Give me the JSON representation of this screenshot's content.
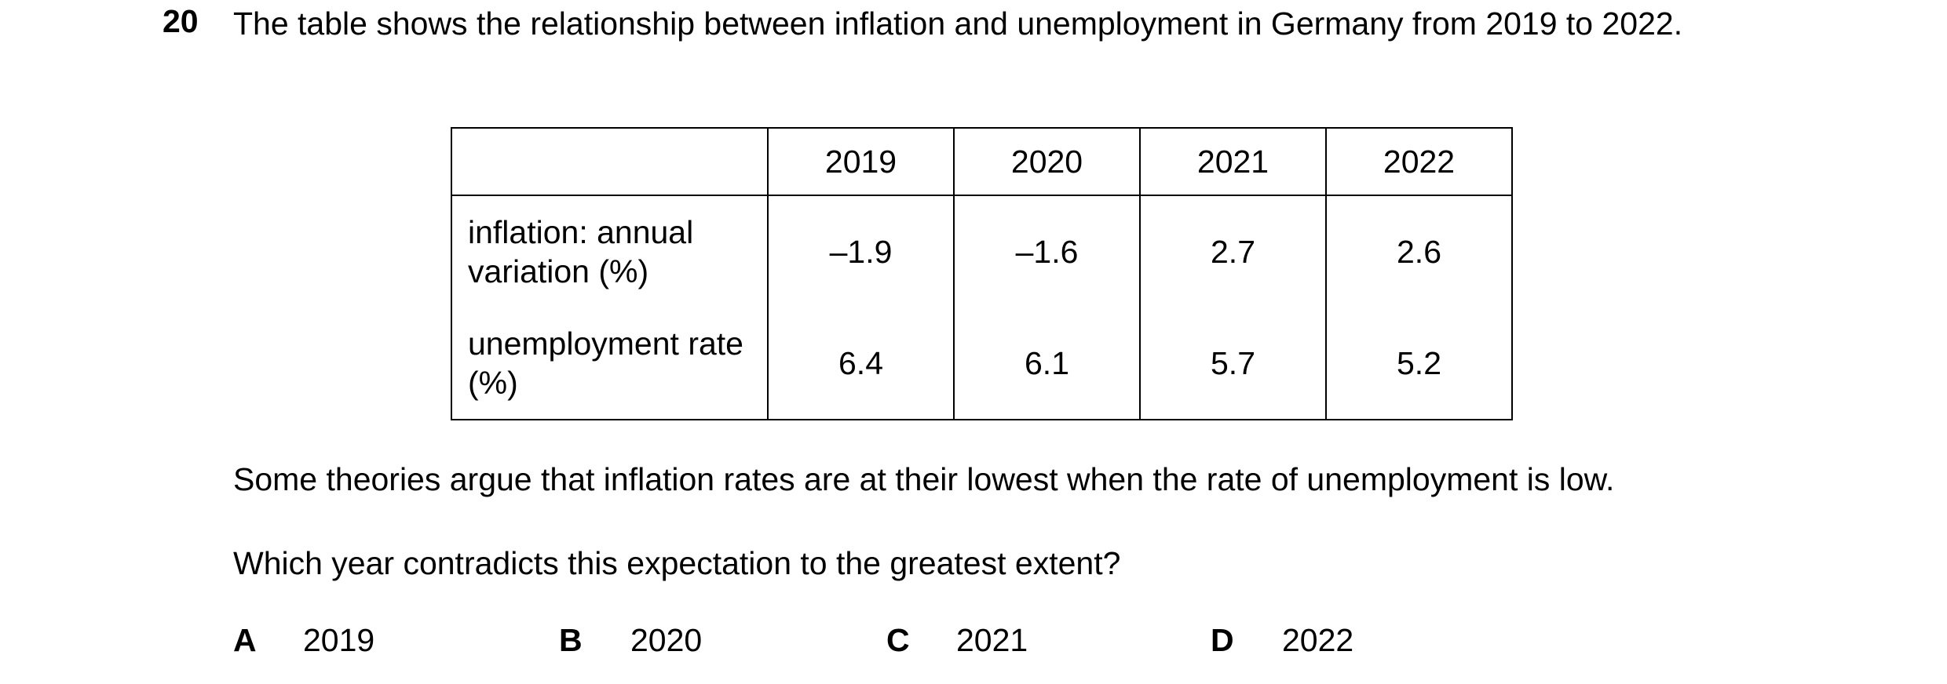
{
  "question": {
    "number": "20",
    "stem": "The table shows the relationship between inflation and unemployment in Germany from 2019 to 2022."
  },
  "table": {
    "header": [
      "2019",
      "2020",
      "2021",
      "2022"
    ],
    "rows": [
      {
        "label": "inflation: annual variation (%)",
        "cells": [
          "–1.9",
          "–1.6",
          "2.7",
          "2.6"
        ]
      },
      {
        "label": "unemployment rate (%)",
        "cells": [
          "6.4",
          "6.1",
          "5.7",
          "5.2"
        ]
      }
    ]
  },
  "statement": "Some theories argue that inflation rates are at their lowest when the rate of unemployment is low.",
  "prompt": "Which year contradicts this expectation to the greatest extent?",
  "options": [
    {
      "letter": "A",
      "text": "2019"
    },
    {
      "letter": "B",
      "text": "2020"
    },
    {
      "letter": "C",
      "text": "2021"
    },
    {
      "letter": "D",
      "text": "2022"
    }
  ]
}
